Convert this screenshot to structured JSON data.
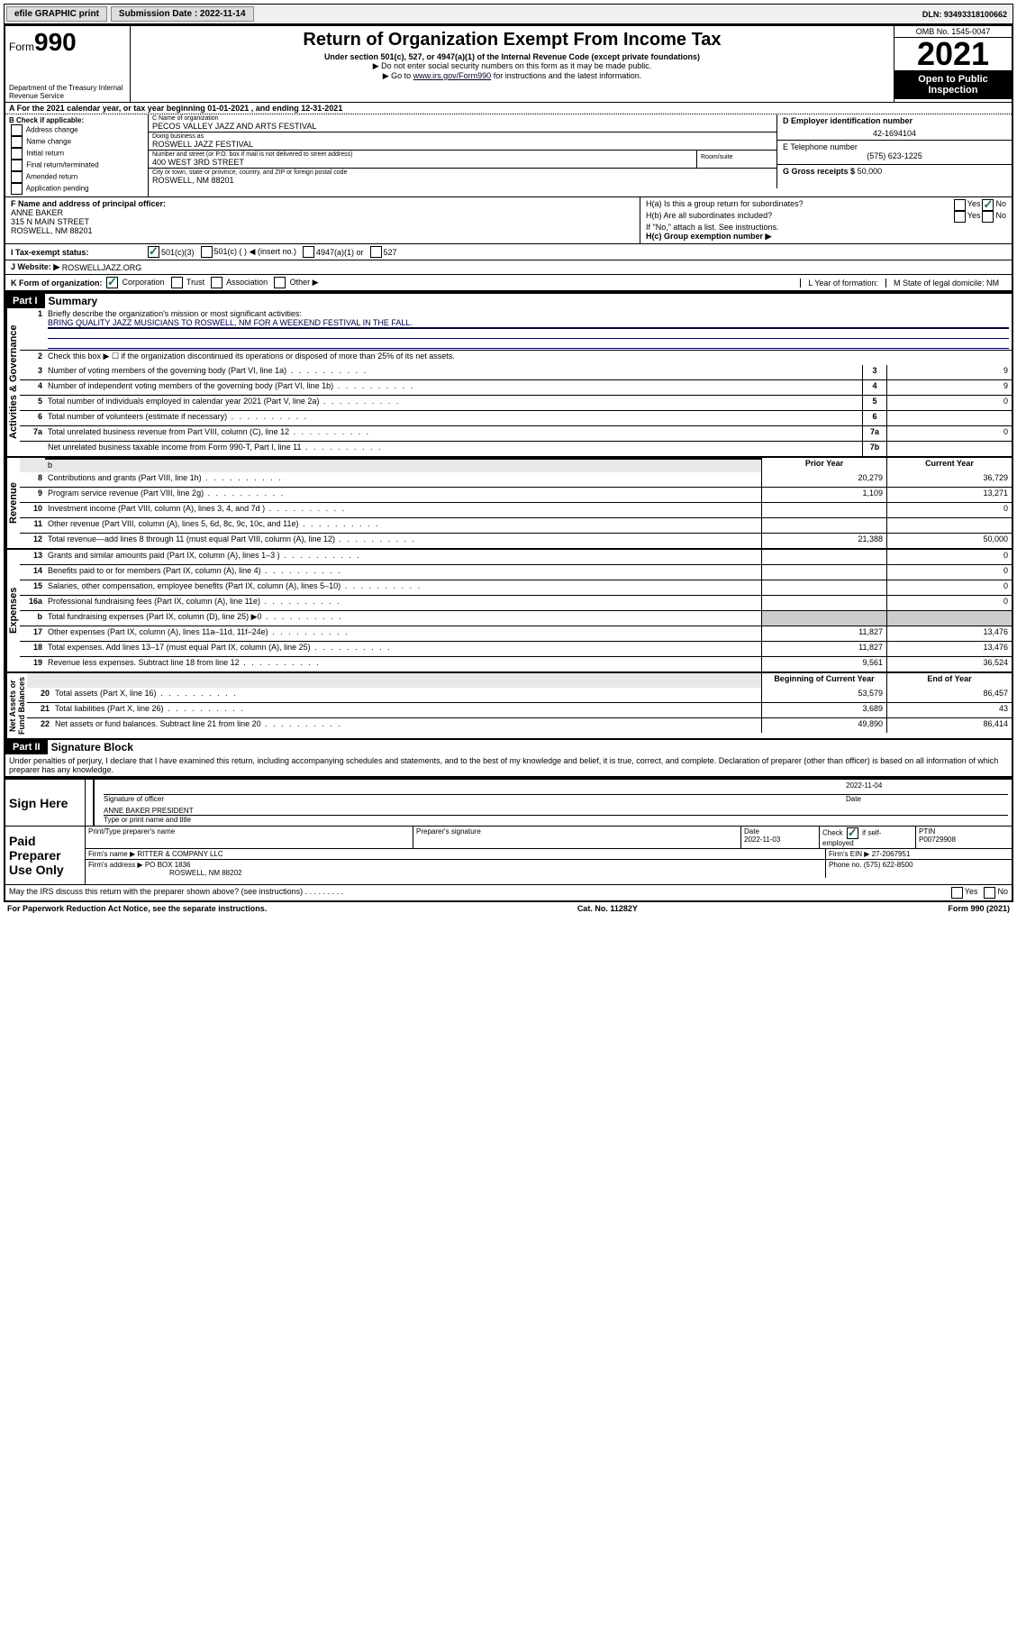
{
  "topbar": {
    "efile": "efile GRAPHIC print",
    "submission_label": "Submission Date : 2022-11-14",
    "dln": "DLN: 93493318100662"
  },
  "header": {
    "form_label": "Form",
    "form_number": "990",
    "dept": "Department of the Treasury\nInternal Revenue Service",
    "title": "Return of Organization Exempt From Income Tax",
    "subtitle": "Under section 501(c), 527, or 4947(a)(1) of the Internal Revenue Code (except private foundations)",
    "note1": "▶ Do not enter social security numbers on this form as it may be made public.",
    "note2_pre": "▶ Go to ",
    "note2_link": "www.irs.gov/Form990",
    "note2_post": " for instructions and the latest information.",
    "omb": "OMB No. 1545-0047",
    "year": "2021",
    "open": "Open to Public Inspection"
  },
  "lineA": "A For the 2021 calendar year, or tax year beginning 01-01-2021   , and ending 12-31-2021",
  "boxB": {
    "label": "B Check if applicable:",
    "opts": [
      "Address change",
      "Name change",
      "Initial return",
      "Final return/terminated",
      "Amended return",
      "Application pending"
    ]
  },
  "boxC": {
    "name_label": "C Name of organization",
    "name": "PECOS VALLEY JAZZ AND ARTS FESTIVAL",
    "dba_label": "Doing business as",
    "dba": "ROSWELL JAZZ FESTIVAL",
    "street_label": "Number and street (or P.O. box if mail is not delivered to street address)",
    "room_label": "Room/suite",
    "street": "400 WEST 3RD STREET",
    "city_label": "City or town, state or province, country, and ZIP or foreign postal code",
    "city": "ROSWELL, NM  88201"
  },
  "boxD": {
    "label": "D Employer identification number",
    "val": "42-1694104"
  },
  "boxE": {
    "label": "E Telephone number",
    "val": "(575) 623-1225"
  },
  "boxG": {
    "label": "G Gross receipts $",
    "val": "50,000"
  },
  "boxF": {
    "label": "F Name and address of principal officer:",
    "name": "ANNE BAKER",
    "addr1": "315 N MAIN STREET",
    "addr2": "ROSWELL, NM  88201"
  },
  "boxH": {
    "ha": "H(a)  Is this a group return for subordinates?",
    "ha_yes": "Yes",
    "ha_no": "No",
    "hb": "H(b)  Are all subordinates included?",
    "hb_yes": "Yes",
    "hb_no": "No",
    "hb_note": "If \"No,\" attach a list. See instructions.",
    "hc": "H(c)  Group exemption number ▶"
  },
  "lineI": {
    "label": "I  Tax-exempt status:",
    "opt1": "501(c)(3)",
    "opt2": "501(c) (   ) ◀ (insert no.)",
    "opt3": "4947(a)(1) or",
    "opt4": "527"
  },
  "lineJ": {
    "label": "J  Website: ▶",
    "val": "ROSWELLJAZZ.ORG"
  },
  "lineK": {
    "label": "K Form of organization:",
    "opts": [
      "Corporation",
      "Trust",
      "Association",
      "Other ▶"
    ]
  },
  "lineL": "L Year of formation:",
  "lineM": "M State of legal domicile: NM",
  "part1": {
    "hdr": "Part I",
    "title": "Summary",
    "l1_label": "Briefly describe the organization's mission or most significant activities:",
    "l1_text": "BRING QUALITY JAZZ MUSICIANS TO ROSWELL, NM FOR A WEEKEND FESTIVAL IN THE FALL.",
    "l2": "Check this box ▶ ☐  if the organization discontinued its operations or disposed of more than 25% of its net assets.",
    "rows_gov": [
      {
        "n": "3",
        "t": "Number of voting members of the governing body (Part VI, line 1a)",
        "box": "3",
        "v": "9"
      },
      {
        "n": "4",
        "t": "Number of independent voting members of the governing body (Part VI, line 1b)",
        "box": "4",
        "v": "9"
      },
      {
        "n": "5",
        "t": "Total number of individuals employed in calendar year 2021 (Part V, line 2a)",
        "box": "5",
        "v": "0"
      },
      {
        "n": "6",
        "t": "Total number of volunteers (estimate if necessary)",
        "box": "6",
        "v": ""
      },
      {
        "n": "7a",
        "t": "Total unrelated business revenue from Part VIII, column (C), line 12",
        "box": "7a",
        "v": "0"
      },
      {
        "n": "",
        "t": "Net unrelated business taxable income from Form 990-T, Part I, line 11",
        "box": "7b",
        "v": ""
      }
    ],
    "col_prior": "Prior Year",
    "col_current": "Current Year",
    "rows_rev": [
      {
        "n": "8",
        "t": "Contributions and grants (Part VIII, line 1h)",
        "p": "20,279",
        "c": "36,729"
      },
      {
        "n": "9",
        "t": "Program service revenue (Part VIII, line 2g)",
        "p": "1,109",
        "c": "13,271"
      },
      {
        "n": "10",
        "t": "Investment income (Part VIII, column (A), lines 3, 4, and 7d )",
        "p": "",
        "c": "0"
      },
      {
        "n": "11",
        "t": "Other revenue (Part VIII, column (A), lines 5, 6d, 8c, 9c, 10c, and 11e)",
        "p": "",
        "c": ""
      },
      {
        "n": "12",
        "t": "Total revenue—add lines 8 through 11 (must equal Part VIII, column (A), line 12)",
        "p": "21,388",
        "c": "50,000"
      }
    ],
    "rows_exp": [
      {
        "n": "13",
        "t": "Grants and similar amounts paid (Part IX, column (A), lines 1–3 )",
        "p": "",
        "c": "0"
      },
      {
        "n": "14",
        "t": "Benefits paid to or for members (Part IX, column (A), line 4)",
        "p": "",
        "c": "0"
      },
      {
        "n": "15",
        "t": "Salaries, other compensation, employee benefits (Part IX, column (A), lines 5–10)",
        "p": "",
        "c": "0"
      },
      {
        "n": "16a",
        "t": "Professional fundraising fees (Part IX, column (A), line 11e)",
        "p": "",
        "c": "0"
      },
      {
        "n": "b",
        "t": "Total fundraising expenses (Part IX, column (D), line 25) ▶0",
        "p": "GRAY",
        "c": "GRAY"
      },
      {
        "n": "17",
        "t": "Other expenses (Part IX, column (A), lines 11a–11d, 11f–24e)",
        "p": "11,827",
        "c": "13,476"
      },
      {
        "n": "18",
        "t": "Total expenses. Add lines 13–17 (must equal Part IX, column (A), line 25)",
        "p": "11,827",
        "c": "13,476"
      },
      {
        "n": "19",
        "t": "Revenue less expenses. Subtract line 18 from line 12",
        "p": "9,561",
        "c": "36,524"
      }
    ],
    "col_begin": "Beginning of Current Year",
    "col_end": "End of Year",
    "rows_net": [
      {
        "n": "20",
        "t": "Total assets (Part X, line 16)",
        "p": "53,579",
        "c": "86,457"
      },
      {
        "n": "21",
        "t": "Total liabilities (Part X, line 26)",
        "p": "3,689",
        "c": "43"
      },
      {
        "n": "22",
        "t": "Net assets or fund balances. Subtract line 21 from line 20",
        "p": "49,890",
        "c": "86,414"
      }
    ]
  },
  "part2": {
    "hdr": "Part II",
    "title": "Signature Block",
    "decl": "Under penalties of perjury, I declare that I have examined this return, including accompanying schedules and statements, and to the best of my knowledge and belief, it is true, correct, and complete. Declaration of preparer (other than officer) is based on all information of which preparer has any knowledge.",
    "sign_here": "Sign Here",
    "sig_officer": "Signature of officer",
    "sig_date": "2022-11-04",
    "date_lbl": "Date",
    "officer_name": "ANNE BAKER  PRESIDENT",
    "name_title_lbl": "Type or print name and title",
    "paid": "Paid Preparer Use Only",
    "pt_name_lbl": "Print/Type preparer's name",
    "pt_sig_lbl": "Preparer's signature",
    "pt_date_lbl": "Date",
    "pt_date": "2022-11-03",
    "pt_check": "Check ☑ if self-employed",
    "ptin_lbl": "PTIN",
    "ptin": "P00729908",
    "firm_name_lbl": "Firm's name   ▶",
    "firm_name": "RITTER & COMPANY LLC",
    "firm_ein_lbl": "Firm's EIN ▶",
    "firm_ein": "27-2067951",
    "firm_addr_lbl": "Firm's address ▶",
    "firm_addr1": "PO BOX 1836",
    "firm_addr2": "ROSWELL, NM  88202",
    "phone_lbl": "Phone no.",
    "phone": "(575) 622-8500",
    "may_irs": "May the IRS discuss this return with the preparer shown above? (see instructions)",
    "yes": "Yes",
    "no": "No"
  },
  "footer": {
    "pra": "For Paperwork Reduction Act Notice, see the separate instructions.",
    "cat": "Cat. No. 11282Y",
    "form": "Form 990 (2021)"
  }
}
